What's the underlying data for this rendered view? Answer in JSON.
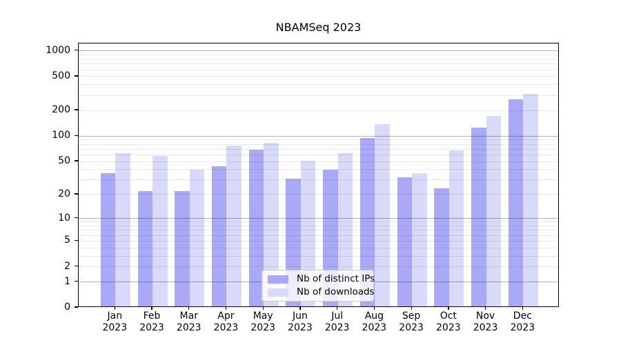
{
  "colors": {
    "background": "#ffffff",
    "distinct_ips_bar": "#a9a9f7",
    "downloads_bar": "#d9d9f9",
    "major_grid": "rgba(0,0,0,0.30)",
    "minor_grid": "rgba(0,0,0,0.085)",
    "axis": "#000000"
  },
  "chart_data": {
    "type": "bar",
    "title": "NBAMSeq 2023",
    "categories": [
      "Jan",
      "Feb",
      "Mar",
      "Apr",
      "May",
      "Jun",
      "Jul",
      "Aug",
      "Sep",
      "Oct",
      "Nov",
      "Dec"
    ],
    "x_tick_year": "2023",
    "series": [
      {
        "name": "Nb of distinct IPs",
        "color": "#a9a9f7",
        "values": [
          35,
          21,
          21,
          42,
          66,
          30,
          38,
          92,
          31,
          23,
          120,
          260
        ]
      },
      {
        "name": "Nb of downloads",
        "color": "#d9d9f9",
        "values": [
          60,
          56,
          38,
          75,
          80,
          49,
          60,
          132,
          35,
          65,
          167,
          300
        ]
      }
    ],
    "xlabel": "",
    "ylabel": "",
    "yscale": "log1p",
    "ylim": [
      0,
      1000
    ],
    "yticks": [
      0,
      1,
      2,
      5,
      10,
      20,
      50,
      100,
      200,
      500,
      1000
    ],
    "major_grid_values": [
      1,
      10,
      100,
      1000
    ],
    "grid": true,
    "legend_position": "lower center inside"
  }
}
